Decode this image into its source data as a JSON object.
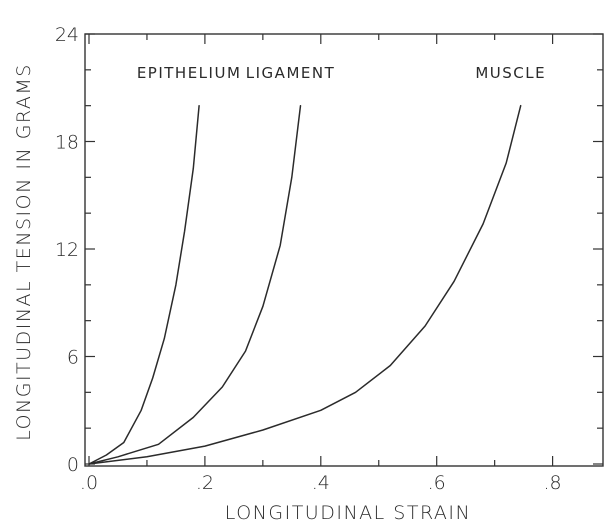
{
  "chart_data": {
    "type": "line",
    "title": "",
    "xlabel": "LONGITUDINAL STRAIN",
    "ylabel": "LONGITUDINAL TENSION IN GRAMS",
    "xlim": [
      0,
      0.85
    ],
    "ylim": [
      0,
      24
    ],
    "x_ticks": [
      0,
      0.2,
      0.4,
      0.6,
      0.8
    ],
    "x_tick_labels": [
      ".0",
      ".2",
      ".4",
      ".6",
      ".8"
    ],
    "y_ticks": [
      0,
      6,
      12,
      18,
      24
    ],
    "y_tick_labels": [
      "0",
      "6",
      "12",
      "18",
      "24"
    ],
    "grid": false,
    "legend": "curve labels printed above each curve",
    "series": [
      {
        "name": "EPITHELIUM",
        "x": [
          0,
          0.03,
          0.06,
          0.09,
          0.11,
          0.13,
          0.15,
          0.165,
          0.18,
          0.19
        ],
        "y": [
          0,
          0.5,
          1.2,
          3.0,
          4.8,
          7.0,
          10.0,
          13.0,
          16.5,
          20.0
        ]
      },
      {
        "name": "LIGAMENT",
        "x": [
          0,
          0.05,
          0.12,
          0.18,
          0.23,
          0.27,
          0.3,
          0.33,
          0.35,
          0.365
        ],
        "y": [
          0,
          0.4,
          1.1,
          2.6,
          4.3,
          6.3,
          8.8,
          12.2,
          16.0,
          20.0
        ]
      },
      {
        "name": "MUSCLE",
        "x": [
          0,
          0.1,
          0.2,
          0.3,
          0.4,
          0.46,
          0.52,
          0.58,
          0.63,
          0.68,
          0.72,
          0.745
        ],
        "y": [
          0,
          0.4,
          1.0,
          1.9,
          3.0,
          4.0,
          5.5,
          7.7,
          10.2,
          13.4,
          16.8,
          20.0
        ]
      }
    ]
  }
}
